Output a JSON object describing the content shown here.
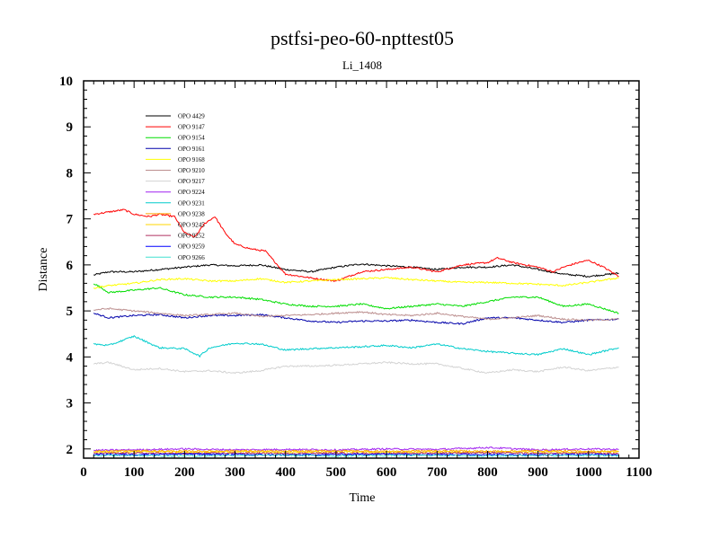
{
  "chart_data": {
    "type": "line",
    "title": "pstfsi-peo-60-npttest05",
    "subtitle": "Li_1408",
    "xlabel": "Time",
    "ylabel": "Distance",
    "xlim": [
      0,
      1100
    ],
    "ylim": [
      1.8,
      10
    ],
    "xticks": [
      0,
      100,
      200,
      300,
      400,
      500,
      600,
      700,
      800,
      900,
      1000,
      1100
    ],
    "yticks": [
      2,
      3,
      4,
      5,
      6,
      7,
      8,
      9,
      10
    ],
    "grid": false,
    "legend_position": "top-left",
    "series": [
      {
        "name": "OPO 4429",
        "color": "#000000",
        "x": [
          20,
          50,
          100,
          150,
          200,
          250,
          300,
          350,
          400,
          450,
          500,
          550,
          600,
          650,
          700,
          750,
          800,
          850,
          900,
          950,
          1000,
          1060
        ],
        "y": [
          5.78,
          5.85,
          5.85,
          5.9,
          5.95,
          6.0,
          5.98,
          6.0,
          5.9,
          5.85,
          5.95,
          6.02,
          5.98,
          5.95,
          5.9,
          5.95,
          5.95,
          6.0,
          5.9,
          5.8,
          5.75,
          5.82
        ]
      },
      {
        "name": "OPO 9147",
        "color": "#ff0000",
        "x": [
          20,
          50,
          80,
          100,
          130,
          150,
          180,
          200,
          220,
          240,
          260,
          280,
          300,
          330,
          360,
          380,
          400,
          430,
          460,
          500,
          550,
          600,
          650,
          700,
          750,
          800,
          820,
          850,
          900,
          930,
          950,
          980,
          1000,
          1030,
          1060
        ],
        "y": [
          7.1,
          7.15,
          7.2,
          7.1,
          7.05,
          7.1,
          7.05,
          6.7,
          6.6,
          6.9,
          7.05,
          6.7,
          6.45,
          6.35,
          6.3,
          6.05,
          5.8,
          5.75,
          5.7,
          5.65,
          5.85,
          5.9,
          5.95,
          5.85,
          6.0,
          6.05,
          6.15,
          6.05,
          5.95,
          5.85,
          5.95,
          6.05,
          6.1,
          5.95,
          5.75
        ]
      },
      {
        "name": "OPO 9154",
        "color": "#00dd00",
        "x": [
          20,
          50,
          100,
          150,
          200,
          250,
          300,
          350,
          400,
          450,
          500,
          550,
          600,
          650,
          700,
          750,
          800,
          850,
          900,
          950,
          1000,
          1060
        ],
        "y": [
          5.6,
          5.4,
          5.45,
          5.5,
          5.35,
          5.3,
          5.3,
          5.25,
          5.15,
          5.1,
          5.1,
          5.15,
          5.05,
          5.1,
          5.15,
          5.1,
          5.2,
          5.3,
          5.3,
          5.1,
          5.15,
          4.95
        ]
      },
      {
        "name": "OPO 9161",
        "color": "#0000aa",
        "x": [
          20,
          50,
          100,
          150,
          200,
          250,
          300,
          350,
          400,
          450,
          500,
          550,
          600,
          650,
          700,
          750,
          800,
          850,
          900,
          950,
          1000,
          1060
        ],
        "y": [
          4.95,
          4.85,
          4.9,
          4.92,
          4.85,
          4.9,
          4.9,
          4.92,
          4.85,
          4.78,
          4.75,
          4.78,
          4.78,
          4.8,
          4.75,
          4.72,
          4.85,
          4.85,
          4.8,
          4.75,
          4.8,
          4.82
        ]
      },
      {
        "name": "OPO 9168",
        "color": "#ffff00",
        "x": [
          20,
          50,
          100,
          150,
          200,
          250,
          300,
          350,
          400,
          450,
          500,
          550,
          600,
          650,
          700,
          750,
          800,
          850,
          900,
          950,
          1000,
          1060
        ],
        "y": [
          5.5,
          5.55,
          5.6,
          5.68,
          5.7,
          5.65,
          5.65,
          5.7,
          5.62,
          5.65,
          5.68,
          5.7,
          5.72,
          5.68,
          5.65,
          5.62,
          5.62,
          5.6,
          5.58,
          5.55,
          5.62,
          5.72
        ]
      },
      {
        "name": "OPO 9210",
        "color": "#bc8f8f",
        "x": [
          20,
          50,
          100,
          150,
          200,
          250,
          300,
          350,
          400,
          450,
          500,
          550,
          600,
          650,
          700,
          750,
          800,
          850,
          900,
          950,
          1000,
          1060
        ],
        "y": [
          5.02,
          5.05,
          5.0,
          4.95,
          4.9,
          4.92,
          4.95,
          4.88,
          4.9,
          4.92,
          4.95,
          4.98,
          4.92,
          4.9,
          4.95,
          4.88,
          4.82,
          4.85,
          4.9,
          4.82,
          4.8,
          4.82
        ]
      },
      {
        "name": "OPO 9217",
        "color": "#d3d3d3",
        "x": [
          20,
          50,
          100,
          150,
          200,
          250,
          300,
          350,
          400,
          450,
          500,
          550,
          600,
          650,
          700,
          750,
          800,
          850,
          900,
          950,
          1000,
          1060
        ],
        "y": [
          3.85,
          3.88,
          3.72,
          3.75,
          3.68,
          3.7,
          3.65,
          3.7,
          3.8,
          3.8,
          3.82,
          3.85,
          3.88,
          3.85,
          3.85,
          3.75,
          3.65,
          3.72,
          3.68,
          3.78,
          3.7,
          3.78
        ]
      },
      {
        "name": "OPO 9224",
        "color": "#a020f0",
        "x": [
          20,
          100,
          200,
          300,
          400,
          500,
          600,
          700,
          800,
          900,
          1000,
          1060
        ],
        "y": [
          1.97,
          1.98,
          2.0,
          1.98,
          1.99,
          1.98,
          2.0,
          1.99,
          2.03,
          1.98,
          2.0,
          1.99
        ]
      },
      {
        "name": "OPO 9231",
        "color": "#00cccc",
        "x": [
          20,
          50,
          100,
          150,
          200,
          230,
          250,
          300,
          350,
          400,
          450,
          500,
          550,
          600,
          650,
          700,
          750,
          800,
          850,
          900,
          950,
          1000,
          1060
        ],
        "y": [
          4.28,
          4.25,
          4.45,
          4.2,
          4.18,
          4.02,
          4.2,
          4.3,
          4.28,
          4.15,
          4.18,
          4.2,
          4.22,
          4.25,
          4.2,
          4.28,
          4.18,
          4.12,
          4.08,
          4.05,
          4.18,
          4.05,
          4.2
        ]
      },
      {
        "name": "OPO 9238",
        "color": "#ffa500",
        "x": [
          20,
          100,
          200,
          300,
          400,
          500,
          600,
          700,
          800,
          900,
          1000,
          1060
        ],
        "y": [
          1.95,
          1.96,
          1.95,
          1.96,
          1.95,
          1.96,
          1.95,
          1.96,
          1.95,
          1.96,
          1.95,
          1.95
        ]
      },
      {
        "name": "OPO 9245",
        "color": "#ffd700",
        "x": [
          20,
          100,
          200,
          300,
          400,
          500,
          600,
          700,
          800,
          900,
          1000,
          1060
        ],
        "y": [
          1.93,
          1.94,
          1.93,
          1.94,
          1.93,
          1.94,
          1.93,
          1.94,
          1.93,
          1.94,
          1.93,
          1.94
        ]
      },
      {
        "name": "OPO 9252",
        "color": "#b03060",
        "x": [
          20,
          100,
          200,
          300,
          400,
          500,
          600,
          700,
          800,
          900,
          1000,
          1060
        ],
        "y": [
          1.9,
          1.91,
          1.9,
          1.91,
          1.9,
          1.91,
          1.9,
          1.91,
          1.92,
          1.9,
          1.91,
          1.9
        ]
      },
      {
        "name": "OPO 9259",
        "color": "#0000ff",
        "x": [
          20,
          100,
          200,
          300,
          400,
          500,
          600,
          700,
          800,
          900,
          1000,
          1060
        ],
        "y": [
          1.88,
          1.88,
          1.89,
          1.88,
          1.87,
          1.88,
          1.89,
          1.88,
          1.88,
          1.87,
          1.88,
          1.88
        ]
      },
      {
        "name": "OPO 9266",
        "color": "#40e0d0",
        "x": [
          20,
          100,
          200,
          300,
          400,
          500,
          600,
          700,
          800,
          900,
          1000,
          1060
        ],
        "y": [
          1.86,
          1.86,
          1.85,
          1.86,
          1.86,
          1.85,
          1.86,
          1.86,
          1.85,
          1.86,
          1.86,
          1.85
        ]
      }
    ]
  }
}
